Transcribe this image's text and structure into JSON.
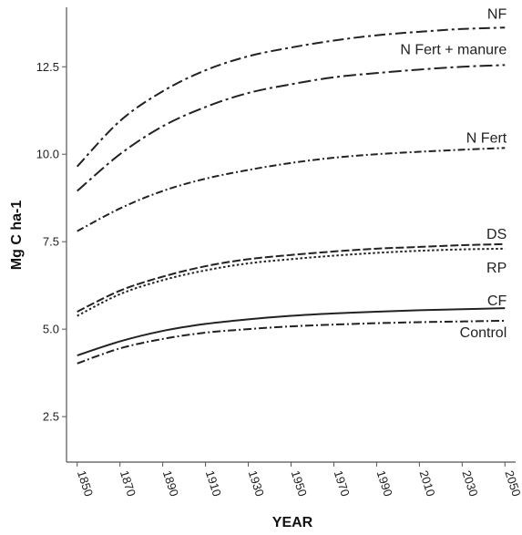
{
  "chart_data": {
    "type": "line",
    "title": "",
    "xlabel": "YEAR",
    "ylabel": "Mg C ha-1",
    "xlim": [
      1845,
      2055
    ],
    "ylim": [
      1.2,
      14.2
    ],
    "x_ticks": [
      1850,
      1870,
      1890,
      1910,
      1930,
      1950,
      1970,
      1990,
      2010,
      2030,
      2050
    ],
    "y_ticks": [
      2.5,
      5.0,
      7.5,
      10.0,
      12.5
    ],
    "y_tick_labels": [
      "2.5",
      "5.0",
      "7.5",
      "10.0",
      "12.5"
    ],
    "grid": false,
    "legend": "none",
    "x": [
      1850,
      1870,
      1890,
      1910,
      1930,
      1950,
      1970,
      1990,
      2010,
      2030,
      2050
    ],
    "series": [
      {
        "name": "NF",
        "dash": "12,4,3,4",
        "values": [
          9.65,
          10.95,
          11.8,
          12.4,
          12.8,
          13.05,
          13.25,
          13.4,
          13.5,
          13.58,
          13.62
        ]
      },
      {
        "name": "N Fert + manure",
        "dash": "14,4,3,4",
        "values": [
          8.95,
          10.0,
          10.8,
          11.35,
          11.75,
          12.0,
          12.2,
          12.32,
          12.42,
          12.5,
          12.55
        ]
      },
      {
        "name": "N Fert",
        "dash": "8,3,2,3",
        "values": [
          7.8,
          8.45,
          8.95,
          9.3,
          9.55,
          9.75,
          9.9,
          10.0,
          10.07,
          10.13,
          10.18
        ]
      },
      {
        "name": "DS",
        "dash": "9,3",
        "values": [
          5.5,
          6.1,
          6.5,
          6.8,
          7.0,
          7.12,
          7.22,
          7.3,
          7.35,
          7.4,
          7.43
        ]
      },
      {
        "name": "RP",
        "dash": "2.5,2.5",
        "values": [
          5.38,
          6.0,
          6.4,
          6.68,
          6.88,
          7.0,
          7.1,
          7.18,
          7.24,
          7.28,
          7.3
        ]
      },
      {
        "name": "CF",
        "dash": "",
        "values": [
          4.25,
          4.65,
          4.95,
          5.15,
          5.28,
          5.38,
          5.45,
          5.5,
          5.54,
          5.57,
          5.6
        ]
      },
      {
        "name": "Control",
        "dash": "9,3,2,3",
        "values": [
          4.02,
          4.45,
          4.72,
          4.9,
          5.0,
          5.08,
          5.13,
          5.17,
          5.2,
          5.22,
          5.24
        ]
      }
    ]
  }
}
